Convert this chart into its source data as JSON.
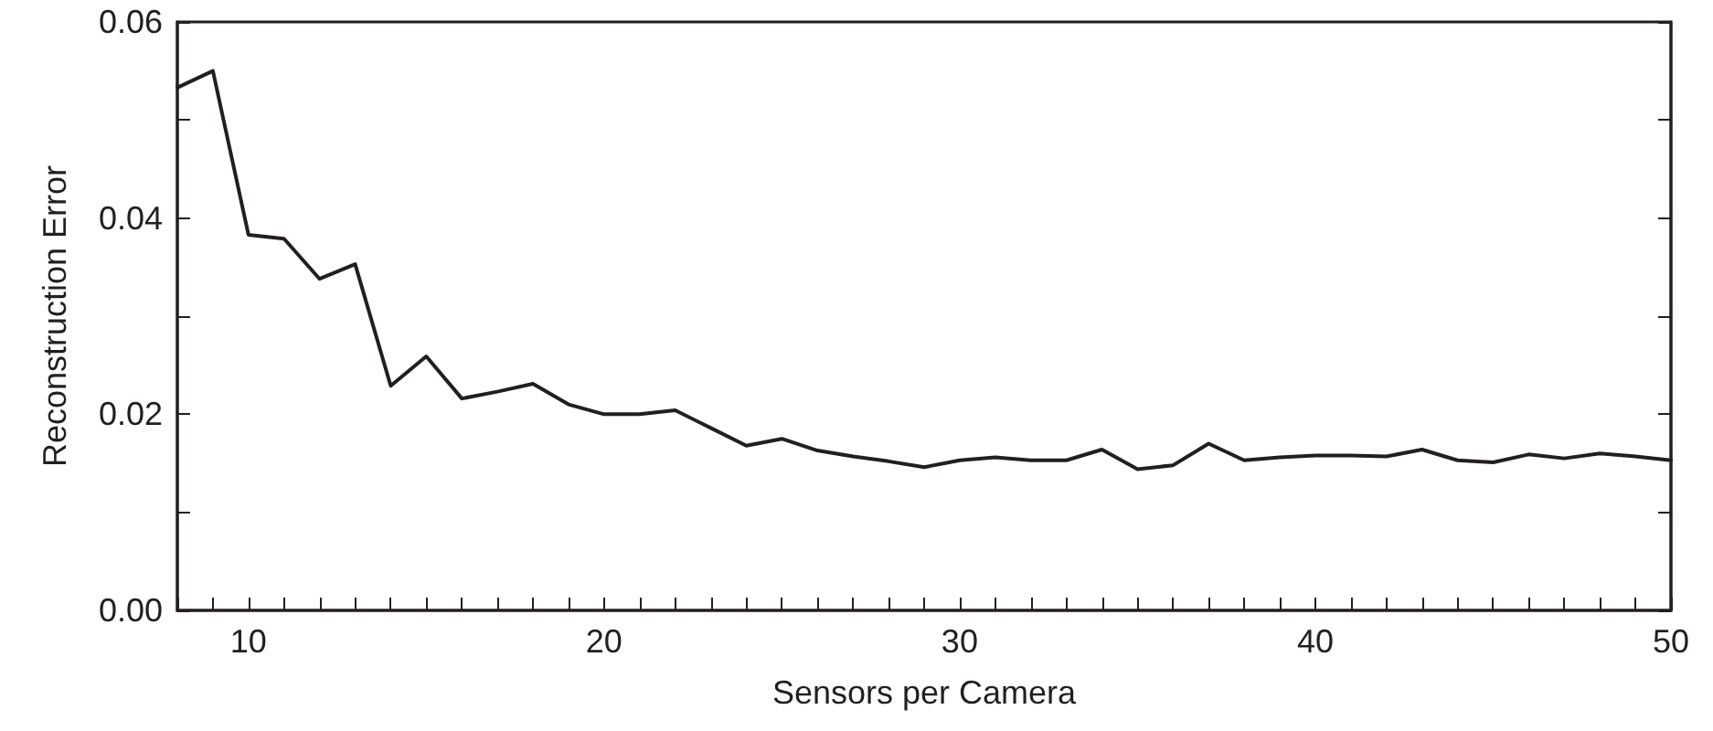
{
  "chart_data": {
    "type": "line",
    "xlabel": "Sensors per Camera",
    "ylabel": "Reconstruction Error",
    "x": [
      8,
      9,
      10,
      11,
      12,
      13,
      14,
      15,
      16,
      17,
      18,
      19,
      20,
      21,
      22,
      23,
      24,
      25,
      26,
      27,
      28,
      29,
      30,
      31,
      32,
      33,
      34,
      35,
      36,
      37,
      38,
      39,
      40,
      41,
      42,
      43,
      44,
      45,
      46,
      47,
      48,
      49,
      50
    ],
    "series": [
      {
        "color": "#231f20",
        "values": [
          0.0533,
          0.055,
          0.0383,
          0.0379,
          0.0338,
          0.0353,
          0.0229,
          0.0259,
          0.0216,
          0.0223,
          0.0231,
          0.021,
          0.02,
          0.02,
          0.0204,
          0.0186,
          0.0168,
          0.0175,
          0.0163,
          0.0157,
          0.0152,
          0.0146,
          0.0153,
          0.0156,
          0.0153,
          0.0153,
          0.0164,
          0.0144,
          0.0148,
          0.017,
          0.0153,
          0.0156,
          0.0158,
          0.0158,
          0.0157,
          0.0164,
          0.0153,
          0.0151,
          0.0159,
          0.0155,
          0.016,
          0.0157,
          0.0153
        ]
      }
    ],
    "xlim": [
      8,
      50
    ],
    "xticks": [
      {
        "value": 8,
        "label": null
      },
      {
        "value": 9,
        "label": null
      },
      10,
      {
        "value": 11,
        "label": null
      },
      {
        "value": 12,
        "label": null
      },
      {
        "value": 13,
        "label": null
      },
      {
        "value": 14,
        "label": null
      },
      {
        "value": 15,
        "label": null
      },
      {
        "value": 16,
        "label": null
      },
      {
        "value": 17,
        "label": null
      },
      {
        "value": 18,
        "label": null
      },
      {
        "value": 19,
        "label": null
      },
      20,
      {
        "value": 21,
        "label": null
      },
      {
        "value": 22,
        "label": null
      },
      {
        "value": 23,
        "label": null
      },
      {
        "value": 24,
        "label": null
      },
      {
        "value": 25,
        "label": null
      },
      {
        "value": 26,
        "label": null
      },
      {
        "value": 27,
        "label": null
      },
      {
        "value": 28,
        "label": null
      },
      {
        "value": 29,
        "label": null
      },
      30,
      {
        "value": 31,
        "label": null
      },
      {
        "value": 32,
        "label": null
      },
      {
        "value": 33,
        "label": null
      },
      {
        "value": 34,
        "label": null
      },
      {
        "value": 35,
        "label": null
      },
      {
        "value": 36,
        "label": null
      },
      {
        "value": 37,
        "label": null
      },
      {
        "value": 38,
        "label": null
      },
      {
        "value": 39,
        "label": null
      },
      40,
      {
        "value": 41,
        "label": null
      },
      {
        "value": 42,
        "label": null
      },
      {
        "value": 43,
        "label": null
      },
      {
        "value": 44,
        "label": null
      },
      {
        "value": 45,
        "label": null
      },
      {
        "value": 46,
        "label": null
      },
      {
        "value": 47,
        "label": null
      },
      {
        "value": 48,
        "label": null
      },
      {
        "value": 49,
        "label": null
      },
      50
    ],
    "ylim": [
      0,
      0.06
    ],
    "yticks": [
      {
        "value": 0,
        "label": "0.00"
      },
      {
        "value": 0.01,
        "label": null
      },
      0.02,
      {
        "value": 0.03,
        "label": null
      },
      0.04,
      {
        "value": 0.05,
        "label": null
      },
      0.06
    ],
    "marker": "none",
    "line_style": "solid"
  }
}
